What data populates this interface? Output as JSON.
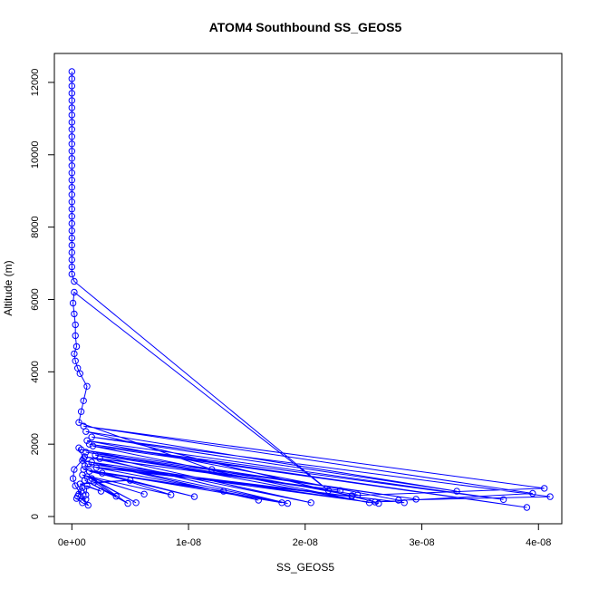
{
  "chart_data": {
    "type": "scatter",
    "title": "ATOM4 Southbound SS_GEOS5",
    "xlabel": "SS_GEOS5",
    "ylabel": "Altitude (m)",
    "xlim": [
      -1.5e-09,
      4.2e-08
    ],
    "ylim": [
      -200,
      12800
    ],
    "x_ticks": [
      0,
      1e-08,
      2e-08,
      3e-08,
      4e-08
    ],
    "x_tick_labels": [
      "0e+00",
      "1e-08",
      "2e-08",
      "3e-08",
      "4e-08"
    ],
    "y_ticks": [
      0,
      2000,
      4000,
      6000,
      8000,
      10000,
      12000
    ],
    "y_tick_labels": [
      "0",
      "2000",
      "4000",
      "6000",
      "8000",
      "10000",
      "12000"
    ],
    "color": "#0000ff",
    "grid": false,
    "series": [
      {
        "points": [
          [
            0,
            12300
          ],
          [
            0,
            12100
          ],
          [
            0,
            11900
          ],
          [
            0,
            11700
          ],
          [
            0,
            11500
          ],
          [
            0,
            11300
          ],
          [
            0,
            11100
          ],
          [
            0,
            10900
          ],
          [
            0,
            10700
          ],
          [
            0,
            10500
          ],
          [
            0,
            10300
          ],
          [
            0,
            10100
          ],
          [
            0,
            9900
          ],
          [
            0,
            9700
          ],
          [
            0,
            9500
          ],
          [
            0,
            9300
          ],
          [
            0,
            9100
          ],
          [
            0,
            8900
          ],
          [
            0,
            8700
          ],
          [
            0,
            8500
          ],
          [
            0,
            8300
          ],
          [
            0,
            8100
          ],
          [
            0,
            7900
          ],
          [
            0,
            7700
          ],
          [
            0,
            7500
          ],
          [
            0,
            7300
          ],
          [
            0,
            7100
          ],
          [
            0,
            6900
          ],
          [
            0,
            6700
          ],
          [
            2e-10,
            6500
          ],
          [
            2.2e-08,
            720
          ],
          [
            2e-10,
            6200
          ],
          [
            1e-10,
            5900
          ],
          [
            2e-10,
            5600
          ],
          [
            3e-10,
            5300
          ],
          [
            3e-10,
            5000
          ],
          [
            4e-10,
            4700
          ],
          [
            2e-10,
            4500
          ],
          [
            3e-10,
            4300
          ],
          [
            5e-10,
            4100
          ],
          [
            7e-10,
            3950
          ],
          [
            1.3e-09,
            3600
          ],
          [
            1e-09,
            3200
          ],
          [
            8e-10,
            2900
          ],
          [
            6e-10,
            2600
          ],
          [
            1.2e-08,
            1300
          ],
          [
            2.4e-08,
            580
          ],
          [
            4.05e-08,
            780
          ],
          [
            1e-09,
            2500
          ],
          [
            3.95e-08,
            640
          ],
          [
            2.6e-08,
            400
          ],
          [
            1.2e-09,
            2350
          ],
          [
            3.3e-08,
            700
          ],
          [
            1.7e-09,
            2200
          ],
          [
            4.1e-08,
            550
          ],
          [
            2.8e-08,
            450
          ],
          [
            1.3e-09,
            2100
          ],
          [
            3.7e-08,
            470
          ],
          [
            1.5e-09,
            2000
          ],
          [
            3.9e-08,
            250
          ],
          [
            1.8e-09,
            1950
          ],
          [
            2.55e-08,
            380
          ],
          [
            8e-10,
            1850
          ],
          [
            2.95e-08,
            480
          ],
          [
            1.2e-09,
            1780
          ],
          [
            2.45e-08,
            600
          ],
          [
            2e-09,
            1700
          ],
          [
            2.05e-08,
            380
          ],
          [
            1.1e-09,
            1650
          ],
          [
            2.3e-08,
            720
          ],
          [
            2.4e-09,
            1600
          ],
          [
            1.85e-08,
            360
          ],
          [
            9e-10,
            1550
          ],
          [
            1.6e-08,
            450
          ],
          [
            1.7e-09,
            1500
          ],
          [
            2.63e-08,
            360
          ],
          [
            1.4e-09,
            1450
          ],
          [
            2.85e-08,
            380
          ],
          [
            1.1e-09,
            1400
          ],
          [
            2.4e-08,
            560
          ],
          [
            2.1e-09,
            1350
          ],
          [
            1.8e-08,
            380
          ],
          [
            1e-09,
            1300
          ],
          [
            1.3e-08,
            700
          ],
          [
            1.5e-09,
            1250
          ],
          [
            1.05e-08,
            550
          ],
          [
            2.6e-09,
            1200
          ],
          [
            8.5e-09,
            600
          ],
          [
            9e-10,
            1150
          ],
          [
            6.2e-09,
            620
          ],
          [
            1.3e-09,
            1100
          ],
          [
            5.5e-09,
            380
          ],
          [
            1.7e-09,
            1050
          ],
          [
            4.8e-09,
            360
          ],
          [
            1.1e-09,
            1000
          ],
          [
            3.8e-09,
            560
          ],
          [
            1.9e-09,
            950
          ],
          [
            5e-09,
            1000
          ],
          [
            7e-10,
            900
          ],
          [
            2.5e-09,
            700
          ],
          [
            1.3e-09,
            850
          ],
          [
            1.2e-09,
            600
          ],
          [
            9e-10,
            800
          ],
          [
            6e-10,
            620
          ],
          [
            8e-10,
            700
          ],
          [
            5e-10,
            560
          ],
          [
            1.2e-09,
            480
          ],
          [
            4e-10,
            500
          ],
          [
            9e-10,
            380
          ],
          [
            1.4e-09,
            310
          ],
          [
            3e-10,
            850
          ],
          [
            1e-10,
            1050
          ],
          [
            2e-10,
            1300
          ],
          [
            1e-09,
            1600
          ],
          [
            6e-10,
            1900
          ]
        ]
      }
    ]
  }
}
